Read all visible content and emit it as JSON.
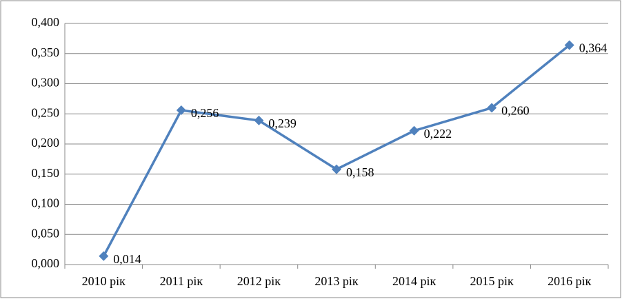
{
  "chart_data": {
    "type": "line",
    "categories": [
      "2010 рік",
      "2011 рік",
      "2012 рік",
      "2013 рік",
      "2014 рік",
      "2015 рік",
      "2016 рік"
    ],
    "series": [
      {
        "color": "#4f81bd",
        "values": [
          0.014,
          0.256,
          0.239,
          0.158,
          0.222,
          0.26,
          0.364
        ],
        "value_labels": [
          "0,014",
          "0,256",
          "0,239",
          "0,158",
          "0,222",
          "0,260",
          "0,364"
        ]
      }
    ],
    "ylim": [
      0,
      0.4
    ],
    "yticks": [
      {
        "value": 0,
        "label": "0,000"
      },
      {
        "value": 0.05,
        "label": "0,050"
      },
      {
        "value": 0.1,
        "label": "0,100"
      },
      {
        "value": 0.15,
        "label": "0,150"
      },
      {
        "value": 0.2,
        "label": "0,200"
      },
      {
        "value": 0.25,
        "label": "0,250"
      },
      {
        "value": 0.3,
        "label": "0,300"
      },
      {
        "value": 0.35,
        "label": "0,350"
      },
      {
        "value": 0.4,
        "label": "0,400"
      }
    ],
    "grid": true
  }
}
